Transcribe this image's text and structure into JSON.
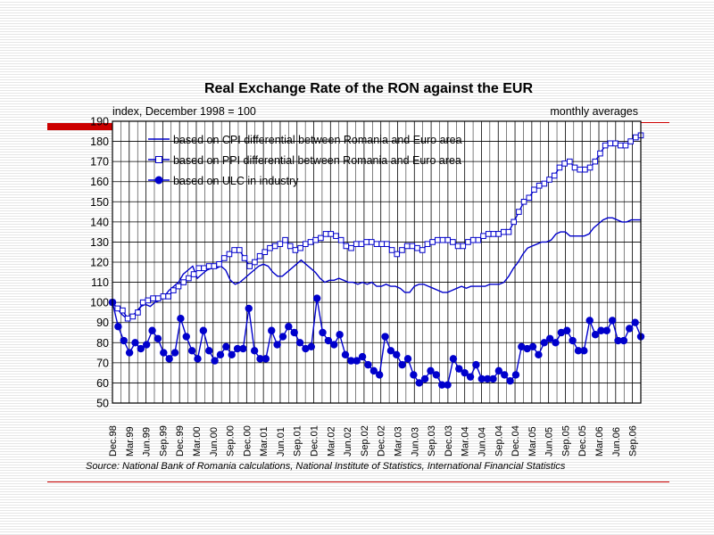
{
  "colors": {
    "series": "#0000cc",
    "accent_bar": "#cc0000",
    "rule": "#cc0000",
    "grid": "#000000"
  },
  "chart_data": {
    "type": "line",
    "title": "Real Exchange Rate of the RON against the EUR",
    "subtitle_left": "index, December 1998 = 100",
    "subtitle_right": "monthly averages",
    "source": "Source: National Bank of Romania calculations, National Institute of Statistics, International Financial Statistics",
    "ylim": [
      50,
      190
    ],
    "yticks": [
      50,
      60,
      70,
      80,
      90,
      100,
      110,
      120,
      130,
      140,
      150,
      160,
      170,
      180,
      190
    ],
    "grid": true,
    "legend_position": "top-left",
    "x_tick_labels": [
      "Dec.98",
      "Mar.99",
      "Jun.99",
      "Sep.99",
      "Dec.99",
      "Mar.00",
      "Jun.00",
      "Sep.00",
      "Dec.00",
      "Mar.01",
      "Jun.01",
      "Sep.01",
      "Dec.01",
      "Mar.02",
      "Jun.02",
      "Sep.02",
      "Dec.02",
      "Mar.03",
      "Jun.03",
      "Sep.03",
      "Dec.03",
      "Mar.04",
      "Jun.04",
      "Sep.04",
      "Dec.04",
      "Mar.05",
      "Jun.05",
      "Sep.05",
      "Dec.05",
      "Mar.06",
      "Jun.06",
      "Sep.06"
    ],
    "series": [
      {
        "name": "based on CPI differential between Romania and Euro area",
        "marker": "none",
        "values": [
          100,
          97,
          94,
          92,
          93,
          95,
          98,
          99,
          98,
          100,
          101,
          103,
          106,
          108,
          110,
          114,
          116,
          118,
          112,
          114,
          116,
          117,
          117,
          118,
          116,
          111,
          109,
          110,
          112,
          114,
          116,
          118,
          119,
          118,
          115,
          113,
          113,
          115,
          117,
          119,
          121,
          119,
          117,
          115,
          112,
          110,
          111,
          111,
          112,
          111,
          110,
          110,
          109,
          110,
          109,
          110,
          108,
          108,
          109,
          108,
          108,
          107,
          105,
          105,
          108,
          109,
          109,
          108,
          107,
          106,
          105,
          105,
          106,
          107,
          108,
          107,
          108,
          108,
          108,
          108,
          109,
          109,
          109,
          110,
          113,
          117,
          120,
          124,
          127,
          128,
          129,
          130,
          130,
          131,
          134,
          135,
          135,
          133,
          133,
          133,
          133,
          134,
          137,
          139,
          141,
          142,
          142,
          141,
          140,
          140,
          141,
          141,
          141
        ]
      },
      {
        "name": "based on PPI differential between Romania and Euro area",
        "marker": "hollow-square",
        "values": [
          100,
          97,
          96,
          92,
          93,
          95,
          100,
          101,
          102,
          102,
          103,
          103,
          106,
          108,
          110,
          112,
          114,
          117,
          117,
          118,
          118,
          119,
          122,
          124,
          126,
          126,
          122,
          118,
          120,
          123,
          125,
          127,
          128,
          129,
          131,
          128,
          126,
          127,
          129,
          130,
          131,
          132,
          134,
          134,
          133,
          131,
          128,
          127,
          129,
          129,
          130,
          130,
          129,
          129,
          129,
          126,
          124,
          126,
          128,
          128,
          127,
          126,
          129,
          130,
          131,
          131,
          131,
          130,
          128,
          128,
          130,
          131,
          131,
          133,
          134,
          134,
          134,
          135,
          135,
          140,
          145,
          150,
          152,
          156,
          158,
          159,
          161,
          163,
          167,
          169,
          170,
          167,
          166,
          166,
          167,
          170,
          174,
          178,
          179,
          179,
          178,
          178,
          180,
          182,
          183
        ]
      },
      {
        "name": "based on ULC in industry",
        "marker": "filled-circle",
        "values": [
          100,
          88,
          81,
          75,
          80,
          77,
          79,
          86,
          82,
          75,
          72,
          75,
          92,
          83,
          76,
          72,
          86,
          76,
          71,
          74,
          78,
          74,
          77,
          77,
          97,
          76,
          72,
          72,
          86,
          79,
          83,
          88,
          85,
          80,
          77,
          78,
          102,
          85,
          81,
          79,
          84,
          74,
          71,
          71,
          73,
          69,
          66,
          64,
          83,
          76,
          74,
          69,
          72,
          64,
          60,
          62,
          66,
          64,
          59,
          59,
          72,
          67,
          65,
          63,
          69,
          62,
          62,
          62,
          66,
          64,
          61,
          64,
          78,
          77,
          78,
          74,
          80,
          82,
          80,
          85,
          86,
          81,
          76,
          76,
          91,
          84,
          86,
          86,
          91,
          81,
          81,
          87,
          90,
          83
        ]
      }
    ]
  }
}
